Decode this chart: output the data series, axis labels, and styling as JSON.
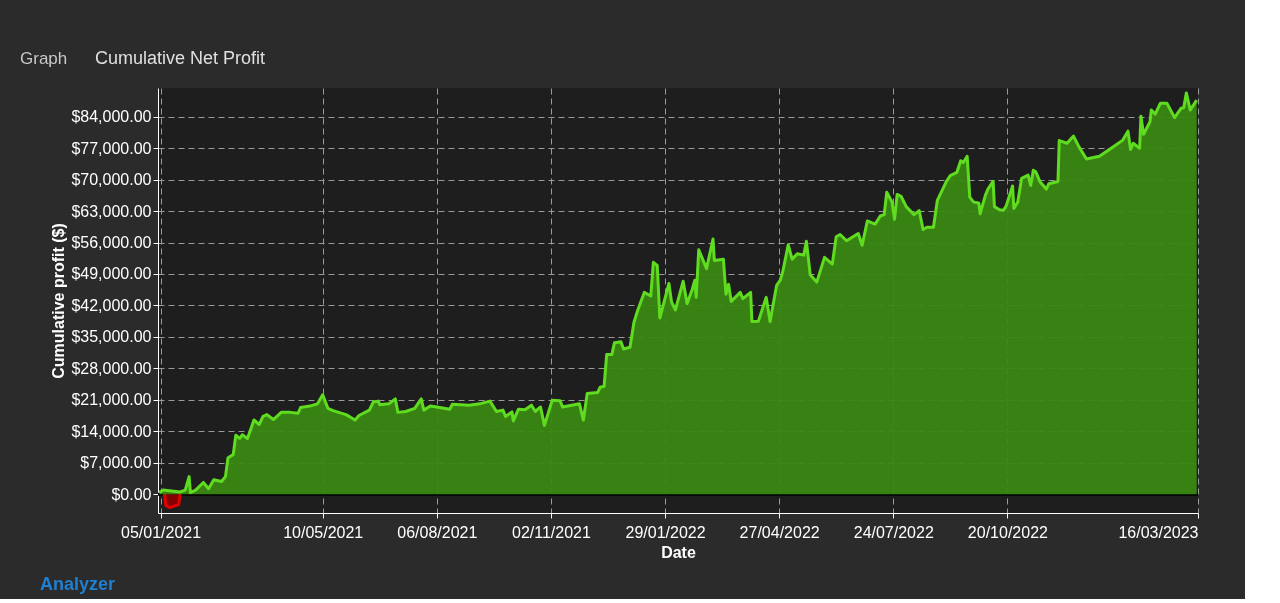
{
  "chart_data": {
    "type": "area",
    "title": "Cumulative Net Profit",
    "xlabel": "Date",
    "ylabel": "Cumulative profit ($)",
    "annotations": [
      "Graph",
      "Analyzer"
    ],
    "xlim": [
      "2021-01-03",
      "2023-03-16"
    ],
    "xticks": [
      {
        "value": "2021-01-05",
        "label": "05/01/2021"
      },
      {
        "value": "2021-05-10",
        "label": "10/05/2021"
      },
      {
        "value": "2021-08-06",
        "label": "06/08/2021"
      },
      {
        "value": "2021-11-02",
        "label": "02/11/2021"
      },
      {
        "value": "2022-01-29",
        "label": "29/01/2022"
      },
      {
        "value": "2022-04-27",
        "label": "27/04/2022"
      },
      {
        "value": "2022-07-24",
        "label": "24/07/2022"
      },
      {
        "value": "2022-10-20",
        "label": "20/10/2022"
      },
      {
        "value": "2023-03-16",
        "label": "16/03/2023"
      }
    ],
    "ylim": [
      -4200,
      90400
    ],
    "yticks": [
      {
        "value": 0,
        "label": "$0.00"
      },
      {
        "value": 7000,
        "label": "$7,000.00"
      },
      {
        "value": 14000,
        "label": "$14,000.00"
      },
      {
        "value": 21000,
        "label": "$21,000.00"
      },
      {
        "value": 28000,
        "label": "$28,000.00"
      },
      {
        "value": 35000,
        "label": "$35,000.00"
      },
      {
        "value": 42000,
        "label": "$42,000.00"
      },
      {
        "value": 49000,
        "label": "$49,000.00"
      },
      {
        "value": 56000,
        "label": "$56,000.00"
      },
      {
        "value": 63000,
        "label": "$63,000.00"
      },
      {
        "value": 70000,
        "label": "$70,000.00"
      },
      {
        "value": 77000,
        "label": "$77,000.00"
      },
      {
        "value": 84000,
        "label": "$84,000.00"
      }
    ],
    "grid": true,
    "marker": "none",
    "line_style": "solid",
    "series": [
      {
        "color": "#e00000",
        "x": [
          "2021-01-08",
          "2021-01-09",
          "2021-01-12",
          "2021-01-19",
          "2021-01-20"
        ],
        "values": [
          0,
          -2500,
          -3000,
          -2300,
          0
        ]
      },
      {
        "color": "#5fdc1f",
        "x": [
          "2021-01-04",
          "2021-01-07",
          "2021-01-20",
          "2021-01-24",
          "2021-01-27",
          "2021-01-28",
          "2021-02-01",
          "2021-02-07",
          "2021-02-11",
          "2021-02-15",
          "2021-02-21",
          "2021-02-24",
          "2021-02-26",
          "2021-03-02",
          "2021-03-04",
          "2021-03-07",
          "2021-03-09",
          "2021-03-13",
          "2021-03-18",
          "2021-03-22",
          "2021-03-25",
          "2021-03-28",
          "2021-04-02",
          "2021-04-08",
          "2021-04-15",
          "2021-04-21",
          "2021-04-23",
          "2021-04-30",
          "2021-05-06",
          "2021-05-10",
          "2021-05-14",
          "2021-05-18",
          "2021-05-28",
          "2021-06-04",
          "2021-06-07",
          "2021-06-15",
          "2021-06-18",
          "2021-06-22",
          "2021-06-23",
          "2021-06-30",
          "2021-07-05",
          "2021-07-07",
          "2021-07-13",
          "2021-07-20",
          "2021-07-25",
          "2021-07-27",
          "2021-08-01",
          "2021-08-06",
          "2021-08-16",
          "2021-08-18",
          "2021-08-31",
          "2021-09-08",
          "2021-09-16",
          "2021-09-21",
          "2021-09-26",
          "2021-09-28",
          "2021-10-03",
          "2021-10-04",
          "2021-10-08",
          "2021-10-13",
          "2021-10-18",
          "2021-10-21",
          "2021-10-25",
          "2021-10-28",
          "2021-11-03",
          "2021-11-09",
          "2021-11-11",
          "2021-11-24",
          "2021-11-27",
          "2021-11-30",
          "2021-12-08",
          "2021-12-10",
          "2021-12-13",
          "2021-12-15",
          "2021-12-19",
          "2021-12-21",
          "2021-12-26",
          "2021-12-28",
          "2022-01-02",
          "2022-01-05",
          "2022-01-08",
          "2022-01-13",
          "2022-01-18",
          "2022-01-20",
          "2022-01-23",
          "2022-01-25",
          "2022-02-01",
          "2022-02-03",
          "2022-02-06",
          "2022-02-12",
          "2022-02-15",
          "2022-02-19",
          "2022-02-21",
          "2022-02-22",
          "2022-02-24",
          "2022-03-02",
          "2022-03-07",
          "2022-03-08",
          "2022-03-15",
          "2022-03-17",
          "2022-03-19",
          "2022-03-21",
          "2022-03-28",
          "2022-03-30",
          "2022-04-05",
          "2022-04-06",
          "2022-04-11",
          "2022-04-17",
          "2022-04-20",
          "2022-04-25",
          "2022-04-28",
          "2022-04-30",
          "2022-05-04",
          "2022-05-07",
          "2022-05-11",
          "2022-05-16",
          "2022-05-18",
          "2022-05-21",
          "2022-05-26",
          "2022-06-01",
          "2022-06-07",
          "2022-06-10",
          "2022-06-13",
          "2022-06-18",
          "2022-06-27",
          "2022-06-30",
          "2022-07-04",
          "2022-07-10",
          "2022-07-14",
          "2022-07-17",
          "2022-07-19",
          "2022-07-23",
          "2022-07-25",
          "2022-07-27",
          "2022-07-30",
          "2022-08-03",
          "2022-08-09",
          "2022-08-13",
          "2022-08-16",
          "2022-08-19",
          "2022-08-24",
          "2022-08-27",
          "2022-09-03",
          "2022-09-06",
          "2022-09-11",
          "2022-09-14",
          "2022-09-16",
          "2022-09-19",
          "2022-09-21",
          "2022-09-24",
          "2022-09-28",
          "2022-09-29",
          "2022-10-03",
          "2022-10-05",
          "2022-10-09",
          "2022-10-10",
          "2022-10-14",
          "2022-10-17",
          "2022-10-19",
          "2022-10-24",
          "2022-10-25",
          "2022-10-28",
          "2022-10-31",
          "2022-11-05",
          "2022-11-07",
          "2022-11-09",
          "2022-11-11",
          "2022-11-14",
          "2022-11-19",
          "2022-11-21",
          "2022-11-28",
          "2022-11-29",
          "2022-12-05",
          "2022-12-10",
          "2022-12-14",
          "2022-12-20",
          "2022-12-30",
          "2023-01-10",
          "2023-01-17",
          "2023-01-21",
          "2023-01-23",
          "2023-01-25",
          "2023-01-30",
          "2023-01-31",
          "2023-02-02",
          "2023-02-07",
          "2023-02-08",
          "2023-02-11",
          "2023-02-15",
          "2023-02-20",
          "2023-02-26",
          "2023-03-03",
          "2023-03-05",
          "2023-03-07",
          "2023-03-10",
          "2023-03-15"
        ],
        "values": [
          350,
          900,
          500,
          900,
          3900,
          350,
          900,
          2600,
          1200,
          3200,
          2800,
          3900,
          8100,
          8800,
          13100,
          12400,
          13200,
          12400,
          16500,
          15500,
          17300,
          17700,
          16600,
          18200,
          18200,
          18000,
          19300,
          19600,
          20100,
          22100,
          19100,
          18600,
          17700,
          16500,
          17500,
          18700,
          20500,
          20700,
          19900,
          20100,
          21200,
          18200,
          18400,
          19100,
          21200,
          18700,
          19600,
          19400,
          18900,
          20000,
          19800,
          20100,
          20700,
          18400,
          18700,
          17300,
          18300,
          16300,
          18900,
          18800,
          19800,
          18400,
          19400,
          15300,
          20900,
          20800,
          19400,
          20100,
          16500,
          22400,
          22600,
          23800,
          24000,
          31100,
          31100,
          33700,
          33900,
          32300,
          32700,
          38200,
          41000,
          44900,
          44100,
          51600,
          50900,
          39200,
          46900,
          42800,
          41000,
          47400,
          42400,
          45600,
          47600,
          43800,
          54400,
          50200,
          56800,
          52000,
          52300,
          44500,
          46700,
          42900,
          44900,
          43500,
          44900,
          38400,
          38500,
          43800,
          38400,
          46400,
          47700,
          49800,
          55500,
          52300,
          53500,
          53200,
          56300,
          48800,
          47200,
          52700,
          51200,
          57300,
          57800,
          56400,
          58000,
          55400,
          60800,
          60100,
          61900,
          62200,
          67200,
          65000,
          61200,
          66700,
          66300,
          64000,
          62200,
          63100,
          58900,
          59400,
          59400,
          65400,
          69600,
          70900,
          71600,
          74200,
          73800,
          75200,
          66100,
          65000,
          64800,
          62400,
          66500,
          67900,
          69600,
          64000,
          63300,
          63200,
          64100,
          68600,
          63600,
          65000,
          70300,
          71000,
          68700,
          72100,
          71700,
          69600,
          67900,
          69100,
          69600,
          78700,
          78100,
          79700,
          77400,
          74600,
          75200,
          77400,
          78800,
          80800,
          76700,
          78100,
          77000,
          84100,
          80100,
          82900,
          85500,
          84600,
          87000,
          87000,
          83800,
          85900,
          86000,
          89300,
          85500,
          87700
        ]
      }
    ]
  }
}
